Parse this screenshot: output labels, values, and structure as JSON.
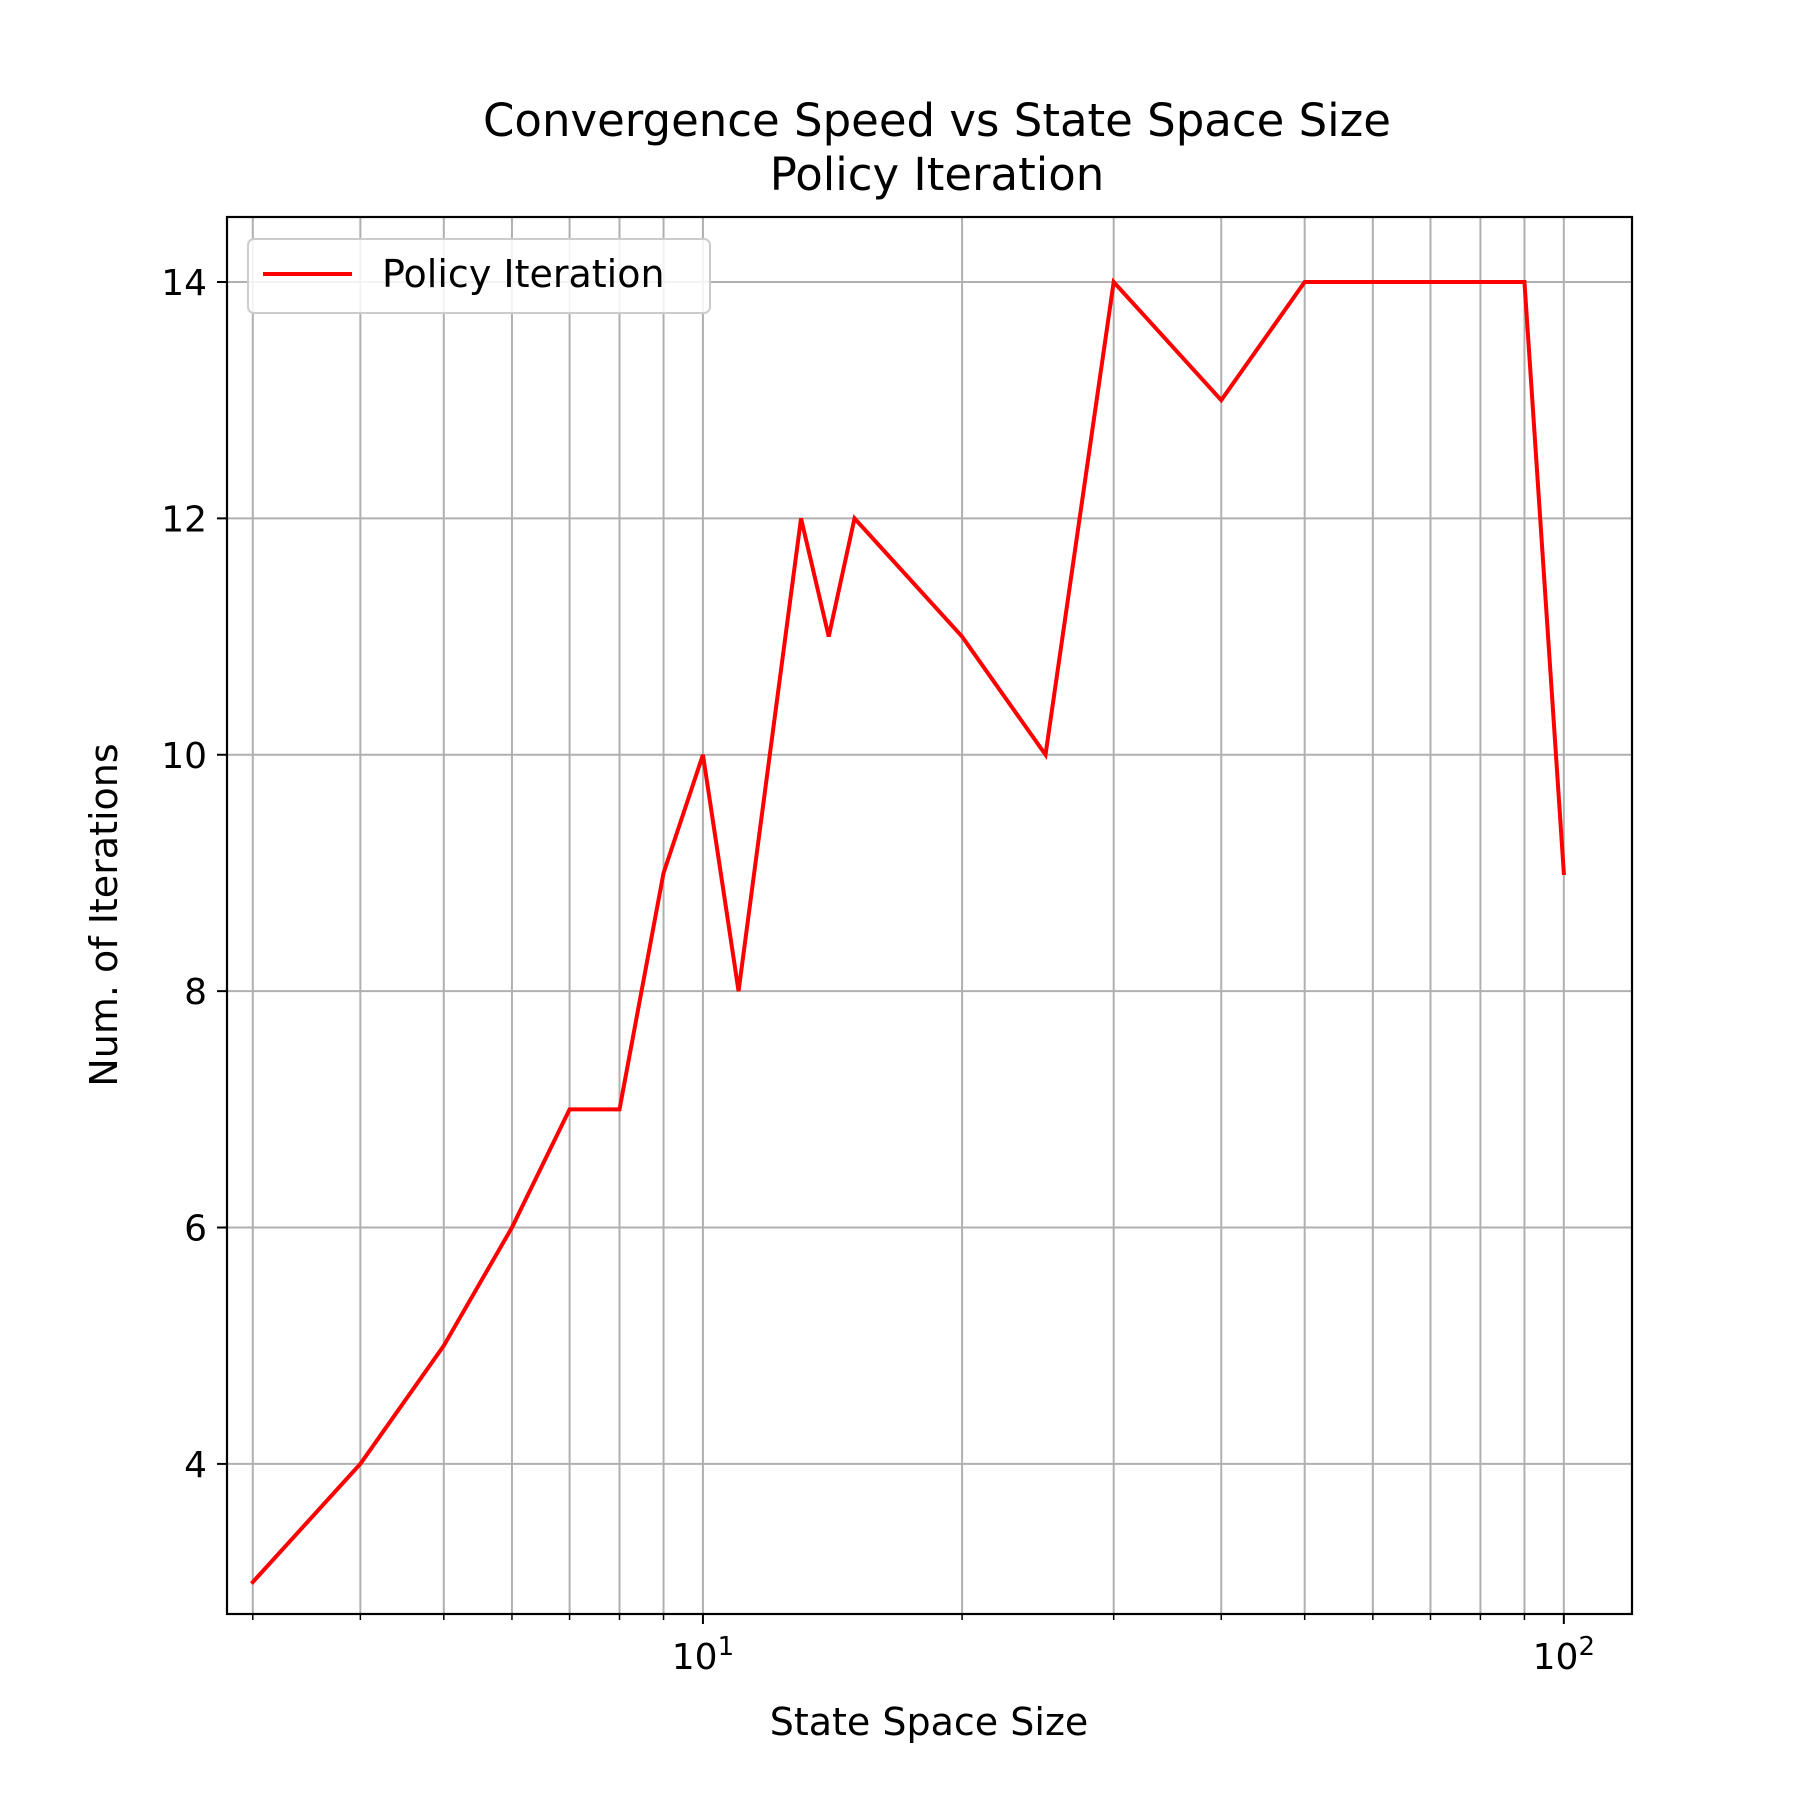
{
  "chart_data": {
    "type": "line",
    "title": "Convergence Speed vs State Space Size",
    "subtitle": "Policy Iteration",
    "xlabel": "State Space Size",
    "ylabel": "Num. of Iterations",
    "xscale": "log",
    "xlim": [
      2.8,
      120
    ],
    "ylim": [
      2.73,
      14.55
    ],
    "grid": true,
    "legend_position": "upper left",
    "x_tick_labels": [
      {
        "value": 10,
        "base": "10",
        "exp": "1"
      },
      {
        "value": 100,
        "base": "10",
        "exp": "2"
      }
    ],
    "y_ticks": [
      4,
      6,
      8,
      10,
      12,
      14
    ],
    "y_tick_labels": [
      "4",
      "6",
      "8",
      "10",
      "12",
      "14"
    ],
    "series": [
      {
        "name": "Policy Iteration",
        "color": "#ff0000",
        "x": [
          3,
          4,
          5,
          6,
          7,
          8,
          9,
          10,
          11,
          13,
          14,
          15,
          20,
          25,
          30,
          40,
          50,
          90,
          100
        ],
        "y": [
          3,
          4,
          5,
          6,
          7,
          7,
          9,
          10,
          8,
          12,
          11,
          12,
          11,
          10,
          14,
          13,
          14,
          14,
          9
        ]
      }
    ]
  }
}
